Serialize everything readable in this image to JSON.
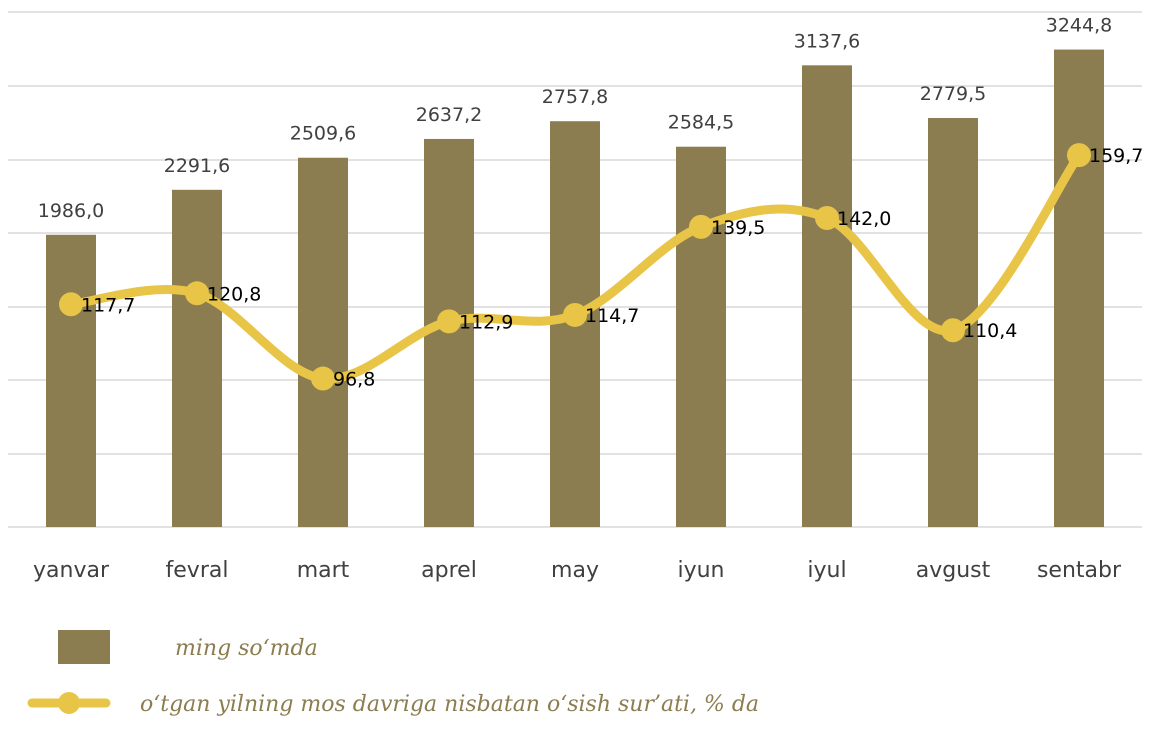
{
  "chart_data": {
    "type": "bar",
    "categories": [
      "yanvar",
      "fevral",
      "mart",
      "aprel",
      "may",
      "iyun",
      "iyul",
      "avgust",
      "sentabr"
    ],
    "series": [
      {
        "name": "ming so‘mda",
        "type": "bar",
        "color": "#8b7d50",
        "values": [
          1986.0,
          2291.6,
          2509.6,
          2637.2,
          2757.8,
          2584.5,
          3137.6,
          2779.5,
          3244.8
        ],
        "value_labels": [
          "1986,0",
          "2291,6",
          "2509,6",
          "2637,2",
          "2757,8",
          "2584,5",
          "3137,6",
          "2779,5",
          "3244,8"
        ]
      },
      {
        "name": "o‘tgan yilning mos davriga nisbatan o‘sish sur’ati, % da",
        "type": "line",
        "axis": "y2",
        "color": "#e8c547",
        "values": [
          117.7,
          120.8,
          96.8,
          112.9,
          114.7,
          139.5,
          142.0,
          110.4,
          159.7
        ],
        "value_labels": [
          "117,7",
          "120,8",
          "96,8",
          "112,9",
          "114,7",
          "139,5",
          "142,0",
          "110,4",
          "159,7"
        ]
      }
    ],
    "ylim": [
      0,
      3500
    ],
    "y2lim": [
      55,
      200
    ],
    "grid": true
  }
}
